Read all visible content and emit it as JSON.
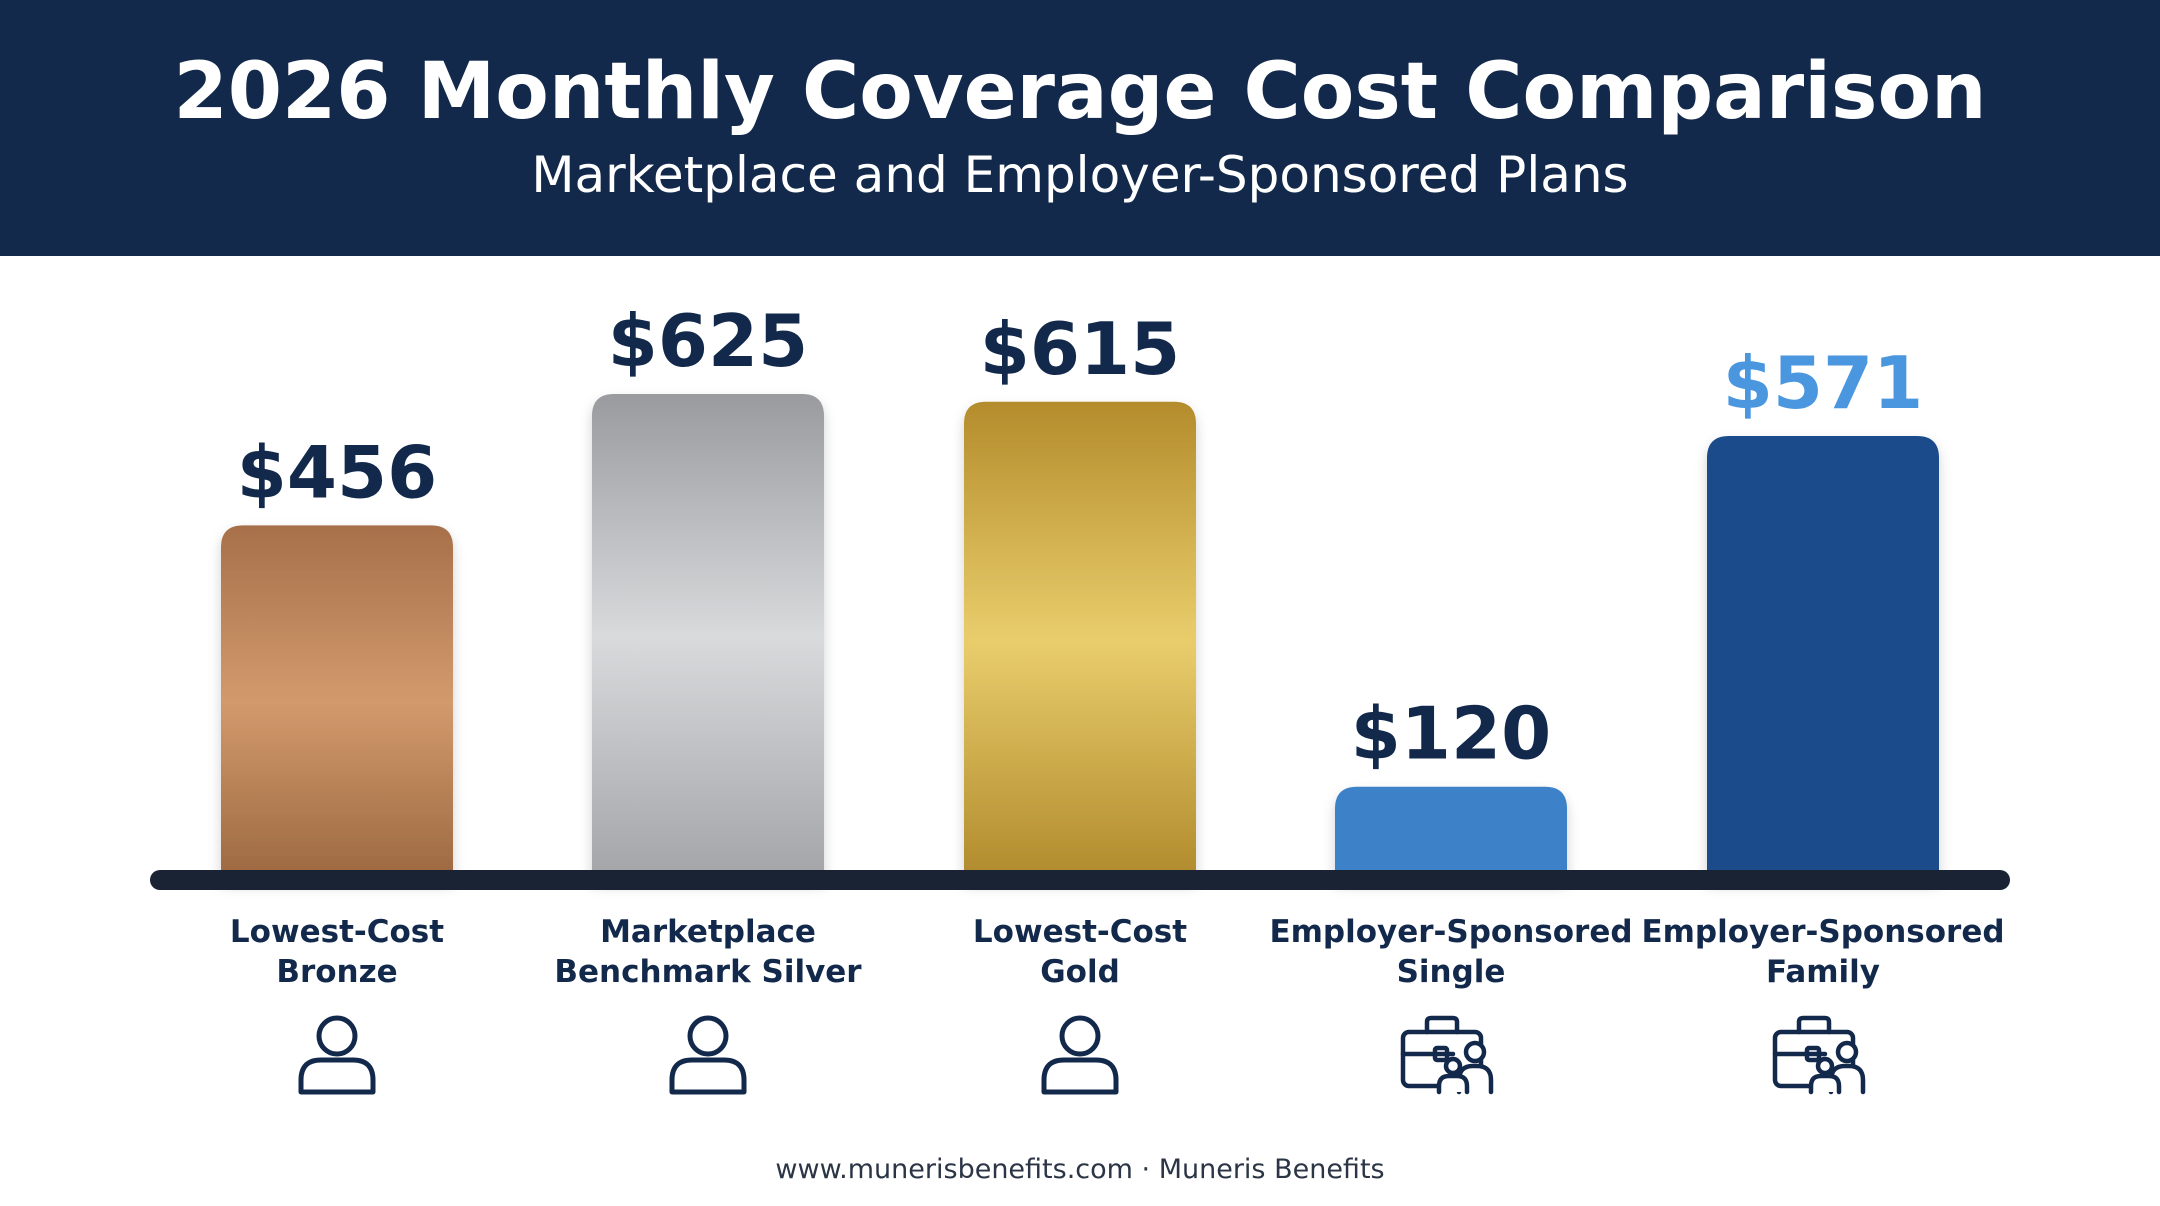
{
  "header": {
    "title": "2026 Monthly Coverage Cost Comparison",
    "subtitle": "Marketplace and Employer-Sponsored Plans"
  },
  "chart_data": {
    "type": "bar",
    "title": "2026 Monthly Coverage Cost Comparison",
    "subtitle": "Marketplace and Employer-Sponsored Plans",
    "categories": [
      [
        "Lowest-Cost",
        "Bronze"
      ],
      [
        "Marketplace",
        "Benchmark Silver"
      ],
      [
        "Lowest-Cost",
        "Gold"
      ],
      [
        "Employer-Sponsored",
        "Single"
      ],
      [
        "Employer-Sponsored",
        "Family"
      ]
    ],
    "values": [
      456,
      625,
      615,
      120,
      571
    ],
    "value_labels": [
      "$456",
      "$625",
      "$615",
      "$120",
      "$571"
    ],
    "ylim": [
      0,
      625
    ],
    "grid": false,
    "legend": "none",
    "colors": {
      "bronze": [
        "#a8704a",
        "#d29a6c",
        "#9c6840"
      ],
      "silver": [
        "#9a9b9e",
        "#d9dadc",
        "#a3a4a7"
      ],
      "gold": [
        "#b48c2c",
        "#e9cd6c",
        "#b08a2c"
      ],
      "single": "#3d82c9",
      "family": "#1e4b8c",
      "baseline": "#1a2333",
      "label_dark": "#13294b",
      "label_accent": "#4a96df"
    },
    "icons": [
      "person-icon",
      "person-icon",
      "person-icon",
      "briefcase-family-icon",
      "briefcase-family-icon"
    ]
  },
  "footer": {
    "text": "www.munerisbenefits.com · Muneris Benefits"
  }
}
